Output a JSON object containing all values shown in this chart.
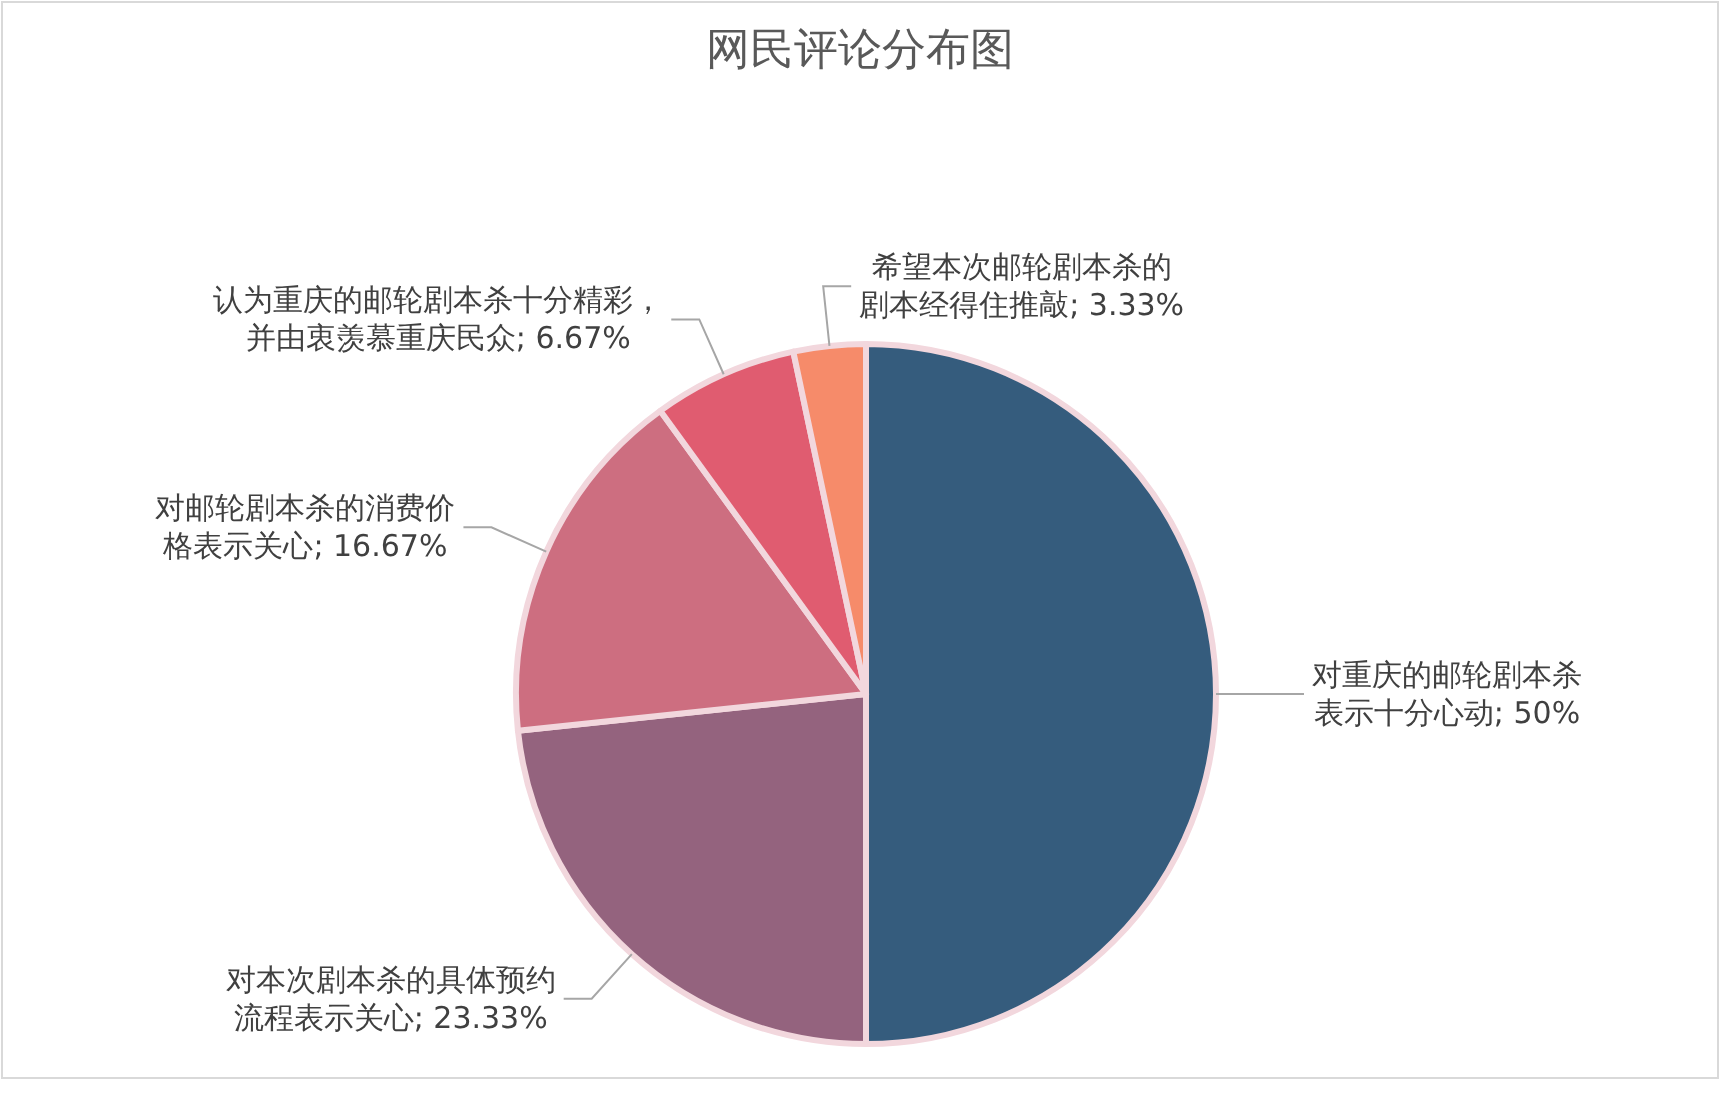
{
  "chart_data": {
    "type": "pie",
    "title": "网民评论分布图",
    "categories": [
      "对重庆的邮轮剧本杀表示十分心动",
      "对本次剧本杀的具体预约流程表示关心",
      "对邮轮剧本杀的消费价格表示关心",
      "认为重庆的邮轮剧本杀十分精彩，并由衷羡慕重庆民众",
      "希望本次邮轮剧本杀的剧本经得住推敲"
    ],
    "values": [
      50,
      23.33,
      16.67,
      6.67,
      3.33
    ],
    "colors": [
      "#355c7d",
      "#94637e",
      "#cd6e80",
      "#e05c70",
      "#f68b6a"
    ],
    "value_labels": [
      "; 50%",
      "; 23.33%",
      "; 16.67%",
      "; 6.67%",
      "; 3.33%"
    ]
  }
}
